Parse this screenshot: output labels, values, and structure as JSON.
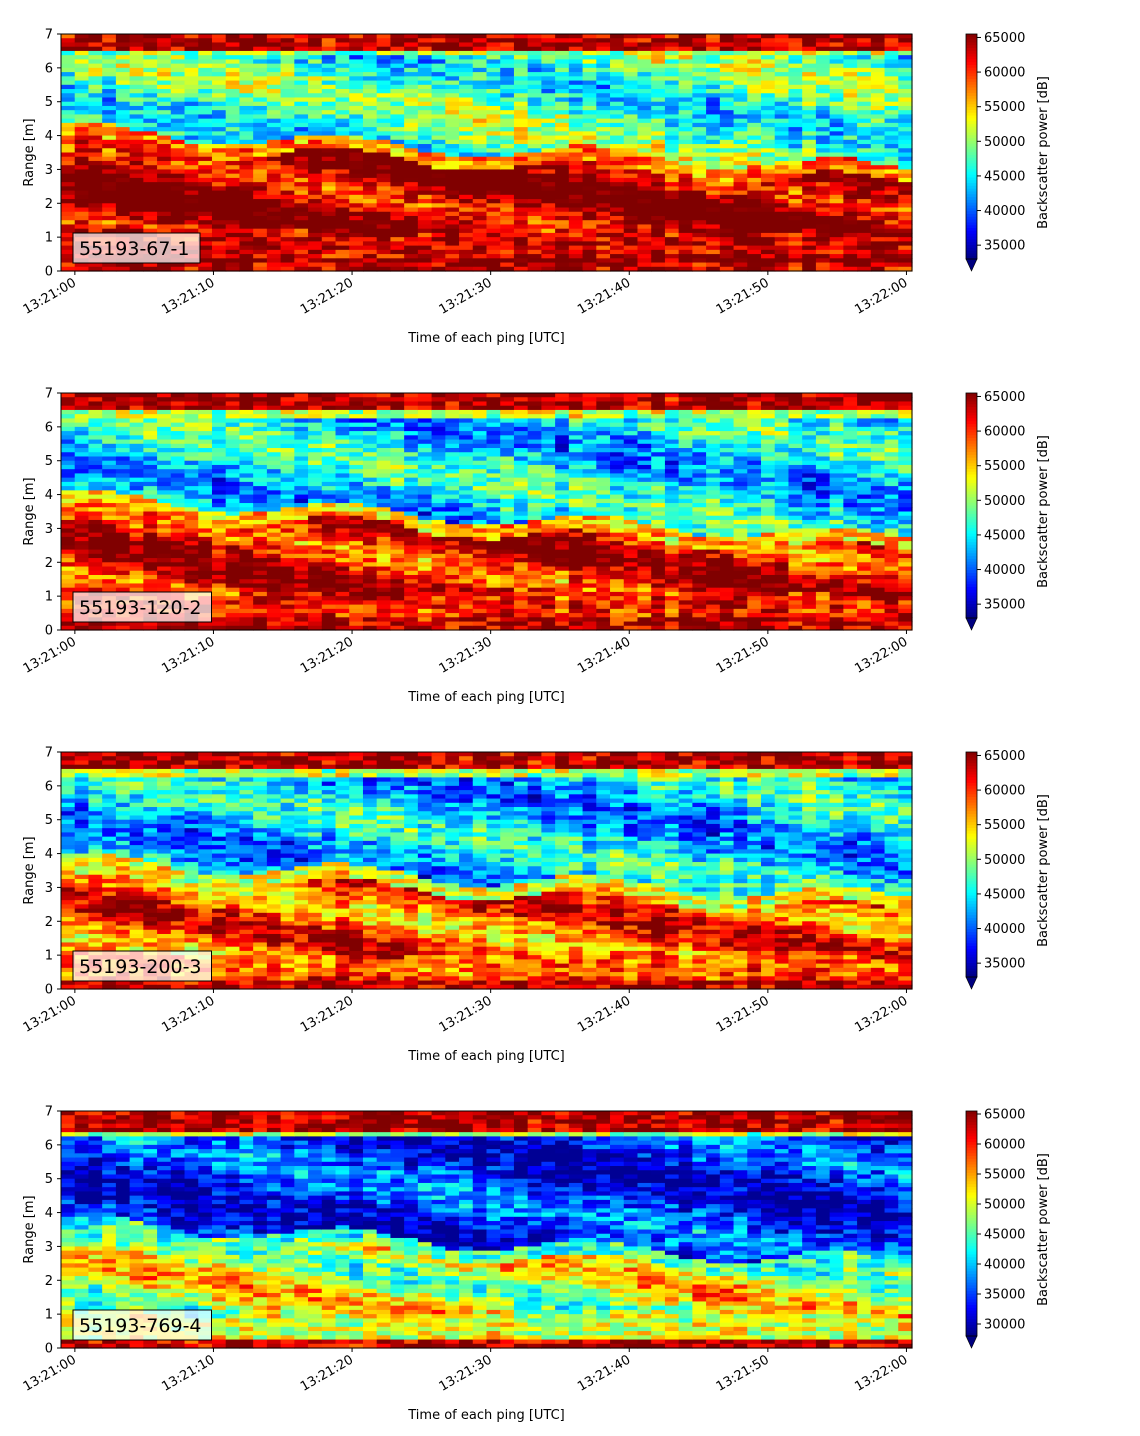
{
  "chart_data": [
    {
      "type": "heatmap",
      "id_label": "55193-67-1",
      "xlabel": "Time of each ping [UTC]",
      "ylabel": "Range [m]",
      "x_ticks": [
        "13:21:00",
        "13:21:10",
        "13:21:20",
        "13:21:30",
        "13:21:40",
        "13:21:50",
        "13:22:00"
      ],
      "xlim_seconds": [
        -1,
        60.4
      ],
      "y_ticks": [
        0,
        1,
        2,
        3,
        4,
        5,
        6,
        7
      ],
      "ylim": [
        0,
        7
      ],
      "colorbar": {
        "label": "Backscatter power [dB]",
        "ticks": [
          35000,
          40000,
          45000,
          50000,
          55000,
          60000,
          65000
        ],
        "min": 33000,
        "max": 65500,
        "extend": "min"
      },
      "colormap": "jet",
      "pattern": {
        "surface_top": 6.45,
        "layer_top_start": 3.75,
        "layer_top_end": 2.6,
        "layer_bottom": 1.1,
        "intensity": 1.0,
        "upper_level": 0.45
      }
    },
    {
      "type": "heatmap",
      "id_label": "55193-120-2",
      "xlabel": "Time of each ping [UTC]",
      "ylabel": "Range [m]",
      "x_ticks": [
        "13:21:00",
        "13:21:10",
        "13:21:20",
        "13:21:30",
        "13:21:40",
        "13:21:50",
        "13:22:00"
      ],
      "xlim_seconds": [
        -1,
        60.4
      ],
      "y_ticks": [
        0,
        1,
        2,
        3,
        4,
        5,
        6,
        7
      ],
      "ylim": [
        0,
        7
      ],
      "colorbar": {
        "label": "Backscatter power [dB]",
        "ticks": [
          35000,
          40000,
          45000,
          50000,
          55000,
          60000,
          65000
        ],
        "min": 33000,
        "max": 65500,
        "extend": "min"
      },
      "colormap": "jet",
      "pattern": {
        "surface_top": 6.35,
        "layer_top_start": 3.5,
        "layer_top_end": 2.3,
        "layer_bottom": 1.0,
        "intensity": 0.9,
        "upper_level": 0.35
      }
    },
    {
      "type": "heatmap",
      "id_label": "55193-200-3",
      "xlabel": "Time of each ping [UTC]",
      "ylabel": "Range [m]",
      "x_ticks": [
        "13:21:00",
        "13:21:10",
        "13:21:20",
        "13:21:30",
        "13:21:40",
        "13:21:50",
        "13:22:00"
      ],
      "xlim_seconds": [
        -1,
        60.4
      ],
      "y_ticks": [
        0,
        1,
        2,
        3,
        4,
        5,
        6,
        7
      ],
      "ylim": [
        0,
        7
      ],
      "colorbar": {
        "label": "Backscatter power [dB]",
        "ticks": [
          35000,
          40000,
          45000,
          50000,
          55000,
          60000,
          65000
        ],
        "min": 33000,
        "max": 65500,
        "extend": "min"
      },
      "colormap": "jet",
      "pattern": {
        "surface_top": 6.35,
        "layer_top_start": 3.4,
        "layer_top_end": 2.3,
        "layer_bottom": 1.0,
        "intensity": 0.8,
        "upper_level": 0.33
      }
    },
    {
      "type": "heatmap",
      "id_label": "55193-769-4",
      "xlabel": "Time of each ping [UTC]",
      "ylabel": "Range [m]",
      "x_ticks": [
        "13:21:00",
        "13:21:10",
        "13:21:20",
        "13:21:30",
        "13:21:40",
        "13:21:50",
        "13:22:00"
      ],
      "xlim_seconds": [
        -1,
        60.4
      ],
      "y_ticks": [
        0,
        1,
        2,
        3,
        4,
        5,
        6,
        7
      ],
      "ylim": [
        0,
        7
      ],
      "colorbar": {
        "label": "Backscatter power [dB]",
        "ticks": [
          30000,
          35000,
          40000,
          45000,
          50000,
          55000,
          60000,
          65000
        ],
        "min": 28000,
        "max": 65500,
        "extend": "min"
      },
      "colormap": "jet",
      "pattern": {
        "surface_top": 6.3,
        "layer_top_start": 3.3,
        "layer_top_end": 2.1,
        "layer_bottom": 1.0,
        "intensity": 0.55,
        "upper_level": 0.15
      }
    }
  ]
}
